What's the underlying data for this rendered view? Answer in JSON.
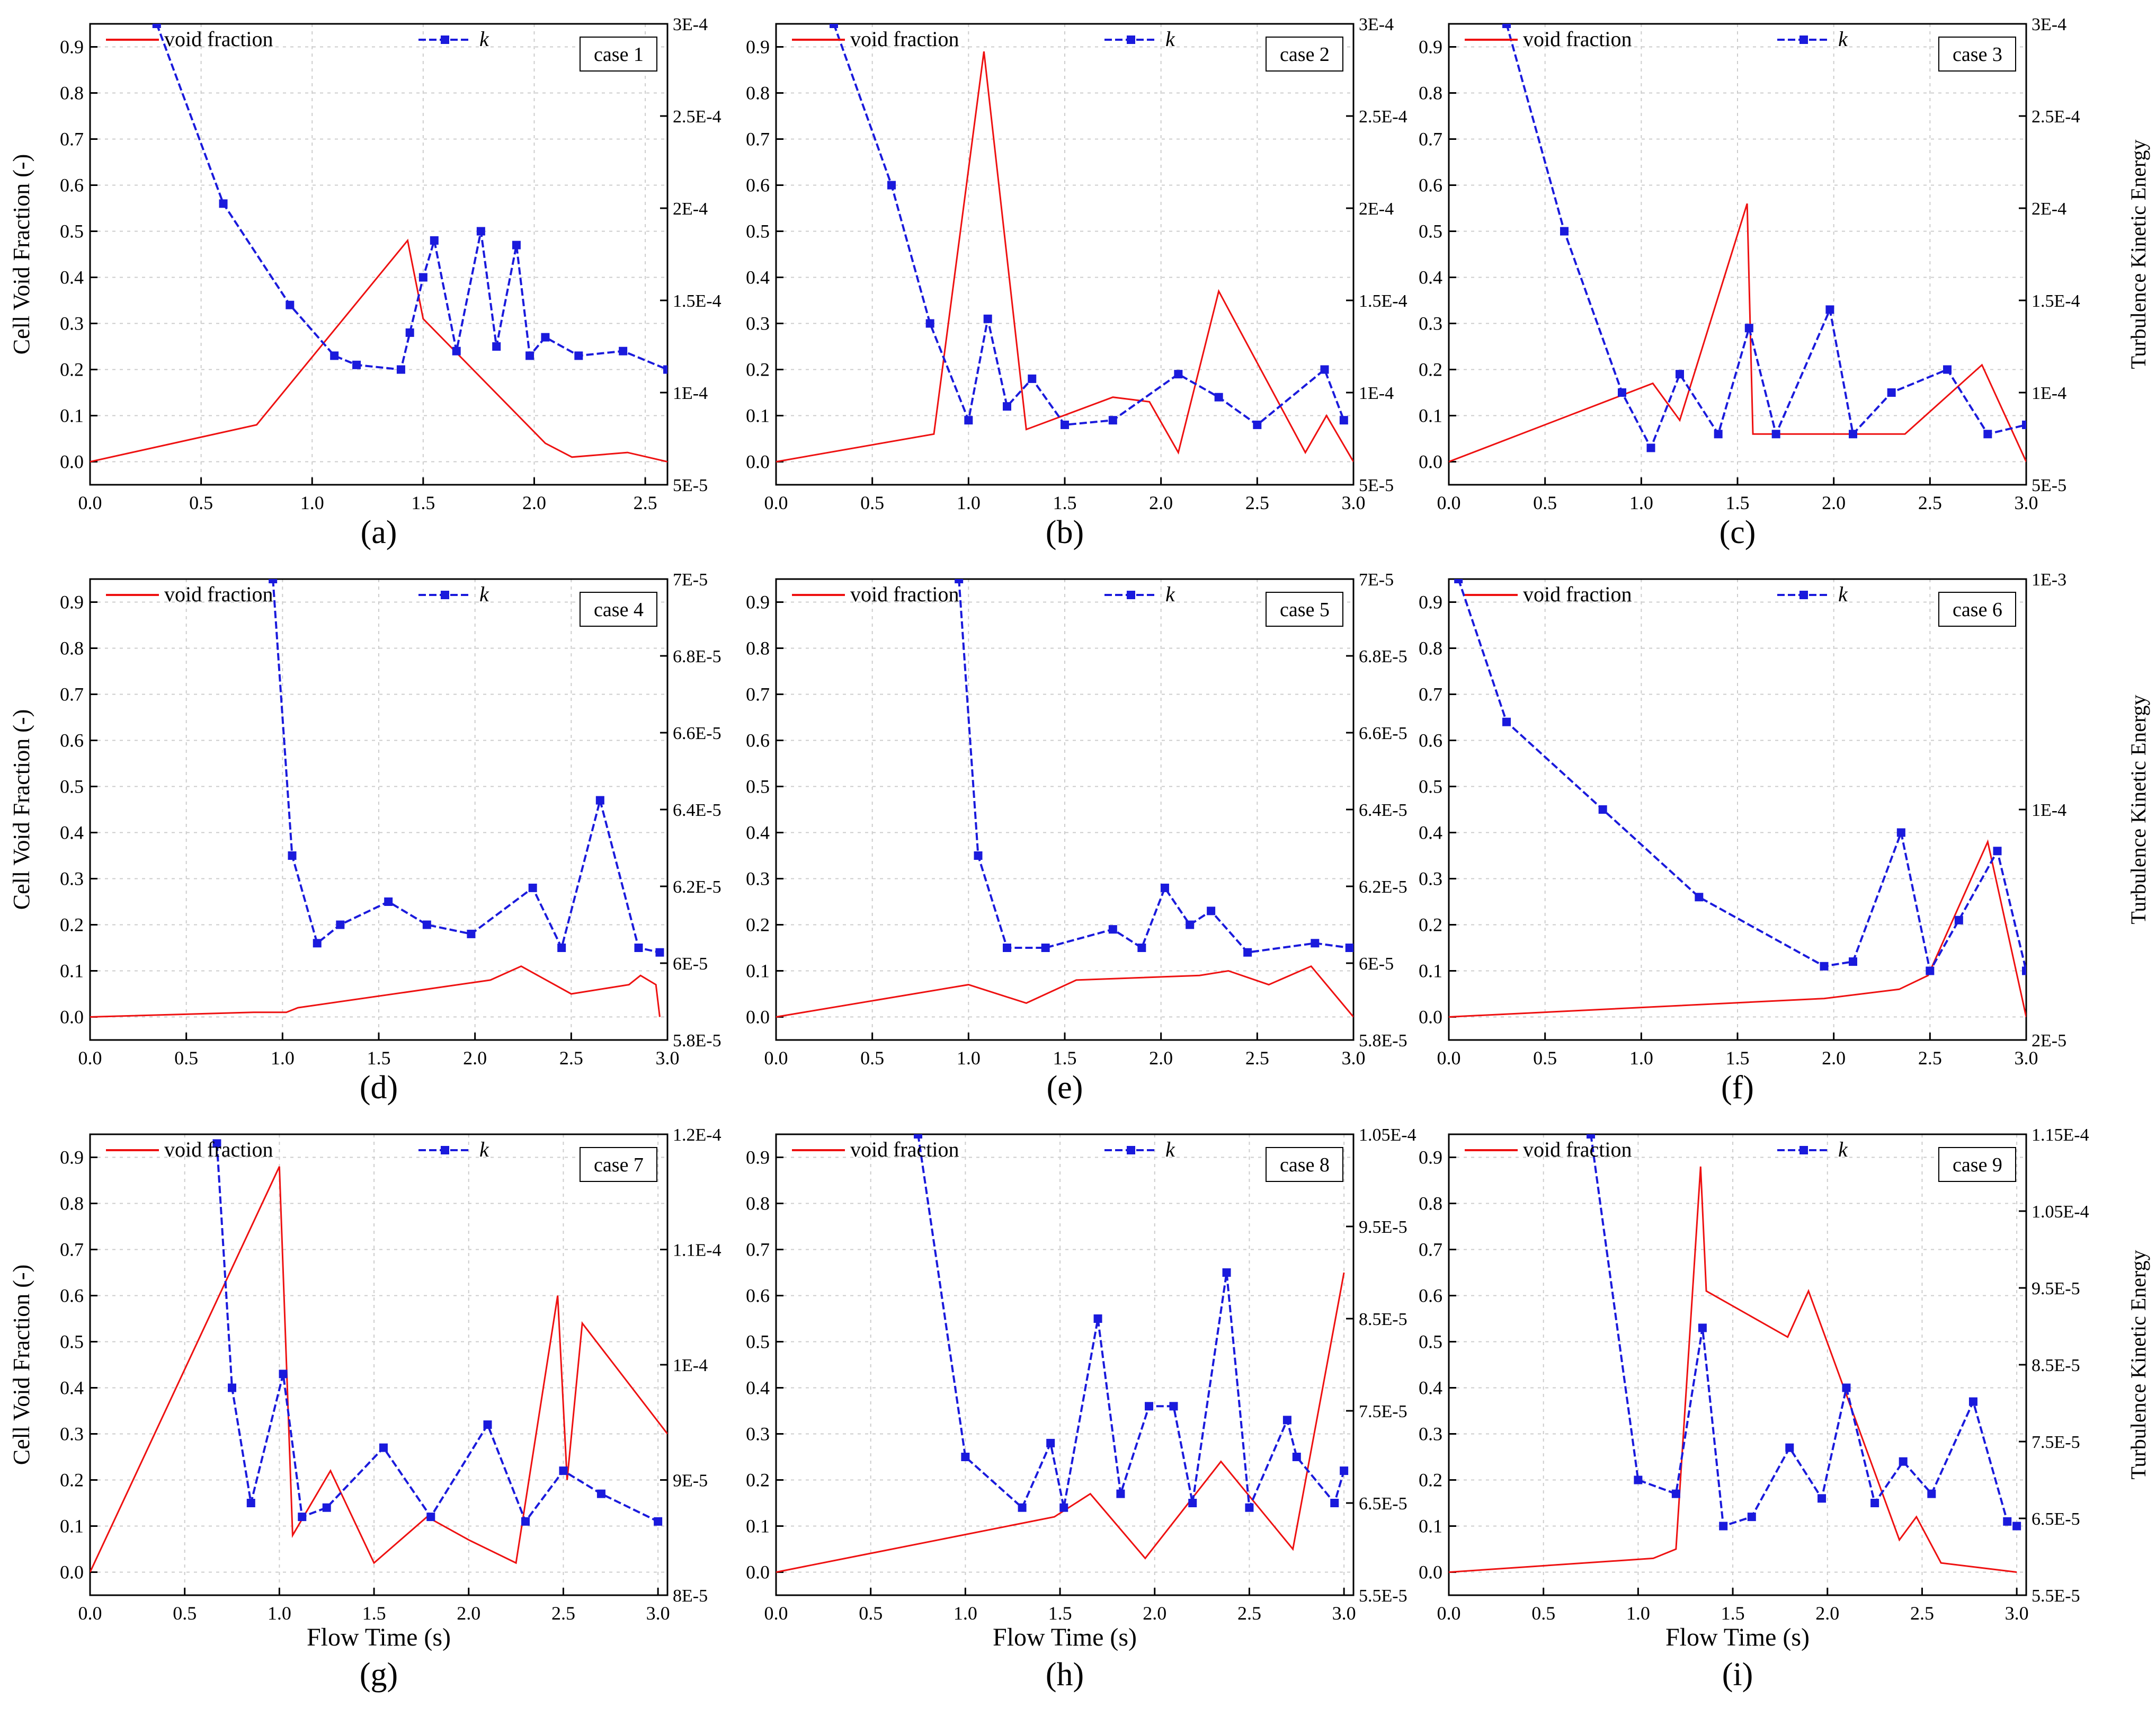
{
  "figure": {
    "common_ylabel": "Cell Void Fraction (-)",
    "common_y2label": "Turbulence Kinetic Energy",
    "common_xlabel": "Flow Time (s)"
  },
  "colors": {
    "void": "#ee1111",
    "k": "#1a1adc",
    "grid": "#cccccc",
    "axis": "#000000"
  },
  "chart_data": [
    {
      "panel": "(a)",
      "case": "case 1",
      "type": "line",
      "xlim": [
        0,
        2.6
      ],
      "xticks": [
        "0.0",
        "0.5",
        "1.0",
        "1.5",
        "2.0",
        "2.5"
      ],
      "ylim": [
        -0.05,
        0.95
      ],
      "yticks": [
        "0.0",
        "0.1",
        "0.2",
        "0.3",
        "0.4",
        "0.5",
        "0.6",
        "0.7",
        "0.8",
        "0.9"
      ],
      "y2ticks": [
        "5E-5",
        "1E-4",
        "1.5E-4",
        "2E-4",
        "2.5E-4",
        "3E-4"
      ],
      "ylabel": "Cell Void Fraction (-)",
      "y2label": "",
      "xlabel": "",
      "legend": [
        "void fraction",
        "k"
      ],
      "series": [
        {
          "name": "void fraction",
          "x": [
            0,
            0.75,
            1.43,
            1.5,
            2.05,
            2.17,
            2.42,
            2.6
          ],
          "y": [
            0,
            0.08,
            0.48,
            0.31,
            0.04,
            0.01,
            0.02,
            0
          ]
        },
        {
          "name": "k",
          "x": [
            0.3,
            0.6,
            0.9,
            1.1,
            1.2,
            1.4,
            1.44,
            1.5,
            1.55,
            1.65,
            1.76,
            1.83,
            1.92,
            1.98,
            2.05,
            2.2,
            2.4,
            2.6
          ],
          "y": [
            0.95,
            0.56,
            0.34,
            0.23,
            0.21,
            0.2,
            0.28,
            0.4,
            0.48,
            0.24,
            0.5,
            0.25,
            0.47,
            0.23,
            0.27,
            0.23,
            0.24,
            0.2
          ]
        }
      ]
    },
    {
      "panel": "(b)",
      "case": "case 2",
      "type": "line",
      "xlim": [
        0,
        3.0
      ],
      "xticks": [
        "0.0",
        "0.5",
        "1.0",
        "1.5",
        "2.0",
        "2.5",
        "3.0"
      ],
      "ylim": [
        -0.05,
        0.95
      ],
      "yticks": [
        "0.0",
        "0.1",
        "0.2",
        "0.3",
        "0.4",
        "0.5",
        "0.6",
        "0.7",
        "0.8",
        "0.9"
      ],
      "y2ticks": [
        "5E-5",
        "1E-4",
        "1.5E-4",
        "2E-4",
        "2.5E-4",
        "3E-4"
      ],
      "ylabel": "",
      "y2label": "",
      "xlabel": "",
      "legend": [
        "void fraction",
        "k"
      ],
      "series": [
        {
          "name": "void fraction",
          "x": [
            0,
            0.82,
            1.08,
            1.3,
            1.75,
            1.94,
            2.09,
            2.3,
            2.75,
            2.86,
            3.0
          ],
          "y": [
            0,
            0.06,
            0.89,
            0.07,
            0.14,
            0.13,
            0.02,
            0.37,
            0.02,
            0.1,
            0
          ]
        },
        {
          "name": "k",
          "x": [
            0.3,
            0.6,
            0.8,
            1.0,
            1.1,
            1.2,
            1.33,
            1.5,
            1.75,
            2.09,
            2.3,
            2.5,
            2.85,
            2.95
          ],
          "y": [
            0.95,
            0.6,
            0.3,
            0.09,
            0.31,
            0.12,
            0.18,
            0.08,
            0.09,
            0.19,
            0.14,
            0.08,
            0.2,
            0.09
          ]
        }
      ]
    },
    {
      "panel": "(c)",
      "case": "case 3",
      "type": "line",
      "xlim": [
        0,
        3.0
      ],
      "xticks": [
        "0.0",
        "0.5",
        "1.0",
        "1.5",
        "2.0",
        "2.5",
        "3.0"
      ],
      "ylim": [
        -0.05,
        0.95
      ],
      "yticks": [
        "0.0",
        "0.1",
        "0.2",
        "0.3",
        "0.4",
        "0.5",
        "0.6",
        "0.7",
        "0.8",
        "0.9"
      ],
      "y2ticks": [
        "5E-5",
        "1E-4",
        "1.5E-4",
        "2E-4",
        "2.5E-4",
        "3E-4"
      ],
      "ylabel": "",
      "y2label": "Turbulence Kinetic Energy",
      "xlabel": "",
      "legend": [
        "void fraction",
        "k"
      ],
      "series": [
        {
          "name": "void fraction",
          "x": [
            0,
            1.06,
            1.2,
            1.55,
            1.58,
            1.77,
            2.37,
            2.77,
            3.0
          ],
          "y": [
            0,
            0.17,
            0.09,
            0.56,
            0.06,
            0.06,
            0.06,
            0.21,
            0
          ]
        },
        {
          "name": "k",
          "x": [
            0.3,
            0.6,
            0.9,
            1.05,
            1.2,
            1.4,
            1.56,
            1.7,
            1.98,
            2.1,
            2.3,
            2.59,
            2.8,
            3.0
          ],
          "y": [
            0.95,
            0.5,
            0.15,
            0.03,
            0.19,
            0.06,
            0.29,
            0.06,
            0.33,
            0.06,
            0.15,
            0.2,
            0.06,
            0.08
          ]
        }
      ]
    },
    {
      "panel": "(d)",
      "case": "case 4",
      "type": "line",
      "xlim": [
        0,
        3.0
      ],
      "xticks": [
        "0.0",
        "0.5",
        "1.0",
        "1.5",
        "2.0",
        "2.5",
        "3.0"
      ],
      "ylim": [
        -0.05,
        0.95
      ],
      "yticks": [
        "0.0",
        "0.1",
        "0.2",
        "0.3",
        "0.4",
        "0.5",
        "0.6",
        "0.7",
        "0.8",
        "0.9"
      ],
      "y2ticks": [
        "5.8E-5",
        "6E-5",
        "6.2E-5",
        "6.4E-5",
        "6.6E-5",
        "6.8E-5",
        "7E-5"
      ],
      "ylabel": "Cell Void Fraction (-)",
      "y2label": "",
      "xlabel": "",
      "legend": [
        "void fraction",
        "k"
      ],
      "series": [
        {
          "name": "void fraction",
          "x": [
            0,
            0.85,
            1.02,
            1.08,
            2.08,
            2.24,
            2.5,
            2.8,
            2.86,
            2.94,
            2.96
          ],
          "y": [
            0,
            0.01,
            0.01,
            0.02,
            0.08,
            0.11,
            0.05,
            0.07,
            0.09,
            0.07,
            0
          ]
        },
        {
          "name": "k",
          "x": [
            0.95,
            1.05,
            1.18,
            1.3,
            1.55,
            1.75,
            1.98,
            2.3,
            2.45,
            2.65,
            2.85,
            2.96
          ],
          "y": [
            0.95,
            0.35,
            0.16,
            0.2,
            0.25,
            0.2,
            0.18,
            0.28,
            0.15,
            0.47,
            0.15,
            0.14
          ]
        }
      ]
    },
    {
      "panel": "(e)",
      "case": "case 5",
      "type": "line",
      "xlim": [
        0,
        3.0
      ],
      "xticks": [
        "0.0",
        "0.5",
        "1.0",
        "1.5",
        "2.0",
        "2.5",
        "3.0"
      ],
      "ylim": [
        -0.05,
        0.95
      ],
      "yticks": [
        "0.0",
        "0.1",
        "0.2",
        "0.3",
        "0.4",
        "0.5",
        "0.6",
        "0.7",
        "0.8",
        "0.9"
      ],
      "y2ticks": [
        "5.8E-5",
        "6E-5",
        "6.2E-5",
        "6.4E-5",
        "6.6E-5",
        "6.8E-5",
        "7E-5"
      ],
      "ylabel": "",
      "y2label": "",
      "xlabel": "",
      "legend": [
        "void fraction",
        "k"
      ],
      "series": [
        {
          "name": "void fraction",
          "x": [
            0,
            1.0,
            1.3,
            1.56,
            2.2,
            2.35,
            2.56,
            2.78,
            3.0
          ],
          "y": [
            0,
            0.07,
            0.03,
            0.08,
            0.09,
            0.1,
            0.07,
            0.11,
            0
          ]
        },
        {
          "name": "k",
          "x": [
            0.95,
            1.05,
            1.2,
            1.4,
            1.75,
            1.9,
            2.02,
            2.15,
            2.26,
            2.45,
            2.8,
            2.98
          ],
          "y": [
            0.95,
            0.35,
            0.15,
            0.15,
            0.19,
            0.15,
            0.28,
            0.2,
            0.23,
            0.14,
            0.16,
            0.15
          ]
        }
      ]
    },
    {
      "panel": "(f)",
      "case": "case 6",
      "type": "line",
      "xlim": [
        0,
        3.0
      ],
      "xticks": [
        "0.0",
        "0.5",
        "1.0",
        "1.5",
        "2.0",
        "2.5",
        "3.0"
      ],
      "ylim": [
        -0.05,
        0.95
      ],
      "yticks": [
        "0.0",
        "0.1",
        "0.2",
        "0.3",
        "0.4",
        "0.5",
        "0.6",
        "0.7",
        "0.8",
        "0.9"
      ],
      "y2ticks": [
        "2E-5",
        "1E-4",
        "1E-3"
      ],
      "ylabel": "",
      "y2label": "Turbulence Kinetic Energy",
      "xlabel": "",
      "legend": [
        "void fraction",
        "k"
      ],
      "series": [
        {
          "name": "void fraction",
          "x": [
            0,
            1.95,
            2.34,
            2.49,
            2.8,
            3.0
          ],
          "y": [
            0,
            0.04,
            0.06,
            0.09,
            0.38,
            0
          ]
        },
        {
          "name": "k",
          "x": [
            0.05,
            0.3,
            0.8,
            1.3,
            1.95,
            2.1,
            2.35,
            2.5,
            2.65,
            2.85,
            3.0
          ],
          "y": [
            0.95,
            0.64,
            0.45,
            0.26,
            0.11,
            0.12,
            0.4,
            0.1,
            0.21,
            0.36,
            0.1
          ]
        }
      ]
    },
    {
      "panel": "(g)",
      "case": "case 7",
      "type": "line",
      "xlim": [
        0,
        3.05
      ],
      "xticks": [
        "0.0",
        "0.5",
        "1.0",
        "1.5",
        "2.0",
        "2.5",
        "3.0"
      ],
      "ylim": [
        -0.05,
        0.95
      ],
      "yticks": [
        "0.0",
        "0.1",
        "0.2",
        "0.3",
        "0.4",
        "0.5",
        "0.6",
        "0.7",
        "0.8",
        "0.9"
      ],
      "y2ticks": [
        "8E-5",
        "9E-5",
        "1E-4",
        "1.1E-4",
        "1.2E-4"
      ],
      "ylabel": "Cell Void Fraction (-)",
      "y2label": "",
      "xlabel": "Flow Time (s)",
      "legend": [
        "void fraction",
        "k"
      ],
      "series": [
        {
          "name": "void fraction",
          "x": [
            0,
            1.0,
            1.07,
            1.27,
            1.5,
            1.78,
            2.0,
            2.25,
            2.47,
            2.52,
            2.6,
            3.05
          ],
          "y": [
            0,
            0.88,
            0.08,
            0.22,
            0.02,
            0.12,
            0.07,
            0.02,
            0.6,
            0.2,
            0.54,
            0.3
          ]
        },
        {
          "name": "k",
          "x": [
            0.67,
            0.75,
            0.85,
            1.02,
            1.12,
            1.25,
            1.55,
            1.8,
            2.1,
            2.3,
            2.5,
            2.7,
            3.0
          ],
          "y": [
            0.93,
            0.4,
            0.15,
            0.43,
            0.12,
            0.14,
            0.27,
            0.12,
            0.32,
            0.11,
            0.22,
            0.17,
            0.11
          ]
        }
      ]
    },
    {
      "panel": "(h)",
      "case": "case 8",
      "type": "line",
      "xlim": [
        0,
        3.05
      ],
      "xticks": [
        "0.0",
        "0.5",
        "1.0",
        "1.5",
        "2.0",
        "2.5",
        "3.0"
      ],
      "ylim": [
        -0.05,
        0.95
      ],
      "yticks": [
        "0.0",
        "0.1",
        "0.2",
        "0.3",
        "0.4",
        "0.5",
        "0.6",
        "0.7",
        "0.8",
        "0.9"
      ],
      "y2ticks": [
        "5.5E-5",
        "6.5E-5",
        "7.5E-5",
        "8.5E-5",
        "9.5E-5",
        "1.05E-4"
      ],
      "ylabel": "",
      "y2label": "",
      "xlabel": "Flow Time (s)",
      "legend": [
        "void fraction",
        "k"
      ],
      "series": [
        {
          "name": "void fraction",
          "x": [
            0,
            1.47,
            1.66,
            1.95,
            2.35,
            2.73,
            3.0
          ],
          "y": [
            0,
            0.12,
            0.17,
            0.03,
            0.24,
            0.05,
            0.65
          ]
        },
        {
          "name": "k",
          "x": [
            0.75,
            1.0,
            1.3,
            1.45,
            1.52,
            1.7,
            1.82,
            1.97,
            2.1,
            2.2,
            2.38,
            2.5,
            2.7,
            2.75,
            2.95,
            3.0
          ],
          "y": [
            0.95,
            0.25,
            0.14,
            0.28,
            0.14,
            0.55,
            0.17,
            0.36,
            0.36,
            0.15,
            0.65,
            0.14,
            0.33,
            0.25,
            0.15,
            0.22
          ]
        }
      ]
    },
    {
      "panel": "(i)",
      "case": "case 9",
      "type": "line",
      "xlim": [
        0,
        3.05
      ],
      "xticks": [
        "0.0",
        "0.5",
        "1.0",
        "1.5",
        "2.0",
        "2.5",
        "3.0"
      ],
      "ylim": [
        -0.05,
        0.95
      ],
      "yticks": [
        "0.0",
        "0.1",
        "0.2",
        "0.3",
        "0.4",
        "0.5",
        "0.6",
        "0.7",
        "0.8",
        "0.9"
      ],
      "y2ticks": [
        "5.5E-5",
        "6.5E-5",
        "7.5E-5",
        "8.5E-5",
        "9.5E-5",
        "1.05E-4",
        "1.15E-4"
      ],
      "ylabel": "",
      "y2label": "Turbulence Kinetic Energy",
      "xlabel": "Flow Time (s)",
      "legend": [
        "void fraction",
        "k"
      ],
      "series": [
        {
          "name": "void fraction",
          "x": [
            0,
            1.08,
            1.2,
            1.33,
            1.36,
            1.79,
            1.9,
            2.38,
            2.47,
            2.6,
            3.0
          ],
          "y": [
            0,
            0.03,
            0.05,
            0.88,
            0.61,
            0.51,
            0.61,
            0.07,
            0.12,
            0.02,
            0
          ]
        },
        {
          "name": "k",
          "x": [
            0.75,
            1.0,
            1.2,
            1.34,
            1.45,
            1.6,
            1.8,
            1.97,
            2.1,
            2.25,
            2.4,
            2.55,
            2.77,
            2.95,
            3.0
          ],
          "y": [
            0.95,
            0.2,
            0.17,
            0.53,
            0.1,
            0.12,
            0.27,
            0.16,
            0.4,
            0.15,
            0.24,
            0.17,
            0.37,
            0.11,
            0.1
          ]
        }
      ]
    }
  ]
}
